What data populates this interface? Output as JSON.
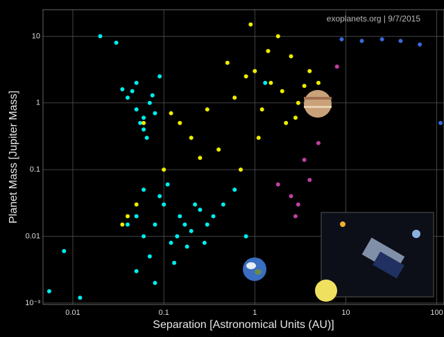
{
  "chart_data": {
    "type": "scatter",
    "annotation": "exoplanets.org | 9/7/2015",
    "x_label": "Separation [Astronomical Units (AU)]",
    "y_label": "Planet Mass [Jupiter Mass]",
    "xscale": "log",
    "yscale": "log",
    "grid": true,
    "xlim": [
      0.0047,
      120
    ],
    "ylim": [
      0.00095,
      25
    ],
    "xticks": [
      0.01,
      0.1,
      1,
      10,
      100
    ],
    "yticks": [
      {
        "value": 0.001,
        "label": "10⁻³"
      },
      0.01,
      0.1,
      1,
      10
    ],
    "series": [
      {
        "color": "#00eeee",
        "x": [
          0.04,
          0.05,
          0.06,
          0.045,
          0.055,
          0.07,
          0.08,
          0.05,
          0.06,
          0.035,
          0.065,
          0.075,
          0.02,
          0.03,
          0.09,
          0.05,
          0.06,
          0.08,
          0.1,
          0.12,
          0.15,
          0.2,
          0.25,
          0.3,
          0.07,
          0.09,
          0.11,
          0.14,
          0.18,
          0.22,
          0.05,
          0.06,
          0.04,
          0.35,
          0.45,
          0.6,
          0.008,
          0.012,
          0.0055,
          0.8,
          1.3,
          0.13,
          0.08,
          0.17,
          0.28
        ],
        "values": [
          1.2,
          0.8,
          0.6,
          1.5,
          0.5,
          1.0,
          0.7,
          2.0,
          0.4,
          1.6,
          0.3,
          1.3,
          10,
          8,
          2.5,
          0.02,
          0.01,
          0.015,
          0.03,
          0.008,
          0.02,
          0.012,
          0.025,
          0.015,
          0.005,
          0.04,
          0.06,
          0.01,
          0.007,
          0.03,
          0.003,
          0.05,
          0.015,
          0.02,
          0.03,
          0.05,
          0.006,
          0.0012,
          0.0015,
          0.01,
          2,
          0.004,
          0.002,
          0.015,
          0.008
        ]
      },
      {
        "color": "#eeee00",
        "x": [
          1.0,
          1.5,
          2.0,
          2.5,
          3.0,
          1.2,
          0.8,
          4.0,
          1.8,
          2.2,
          0.6,
          0.5,
          1.1,
          3.5,
          2.8,
          0.3,
          0.2,
          0.15,
          0.1,
          0.05,
          0.04,
          0.06,
          0.25,
          0.7,
          1.4,
          5.0,
          0.9,
          0.4,
          0.035,
          0.12
        ],
        "values": [
          3,
          2,
          1.5,
          5,
          1,
          0.8,
          2.5,
          3,
          10,
          0.5,
          1.2,
          4,
          0.3,
          1.8,
          0.6,
          0.8,
          0.3,
          0.5,
          0.1,
          0.03,
          0.02,
          0.5,
          0.15,
          0.1,
          6,
          2,
          15,
          0.2,
          0.015,
          0.7
        ]
      },
      {
        "color": "#c040a0",
        "x": [
          2.5,
          3,
          2.8,
          1.8,
          4,
          5,
          8,
          3.5
        ],
        "values": [
          0.04,
          0.03,
          0.02,
          0.06,
          0.07,
          0.25,
          3.5,
          0.14
        ]
      },
      {
        "color": "#3a6ad8",
        "x": [
          9,
          15,
          25,
          40,
          65,
          110
        ],
        "values": [
          9,
          8.5,
          9,
          8.5,
          7.5,
          0.5
        ]
      }
    ]
  }
}
